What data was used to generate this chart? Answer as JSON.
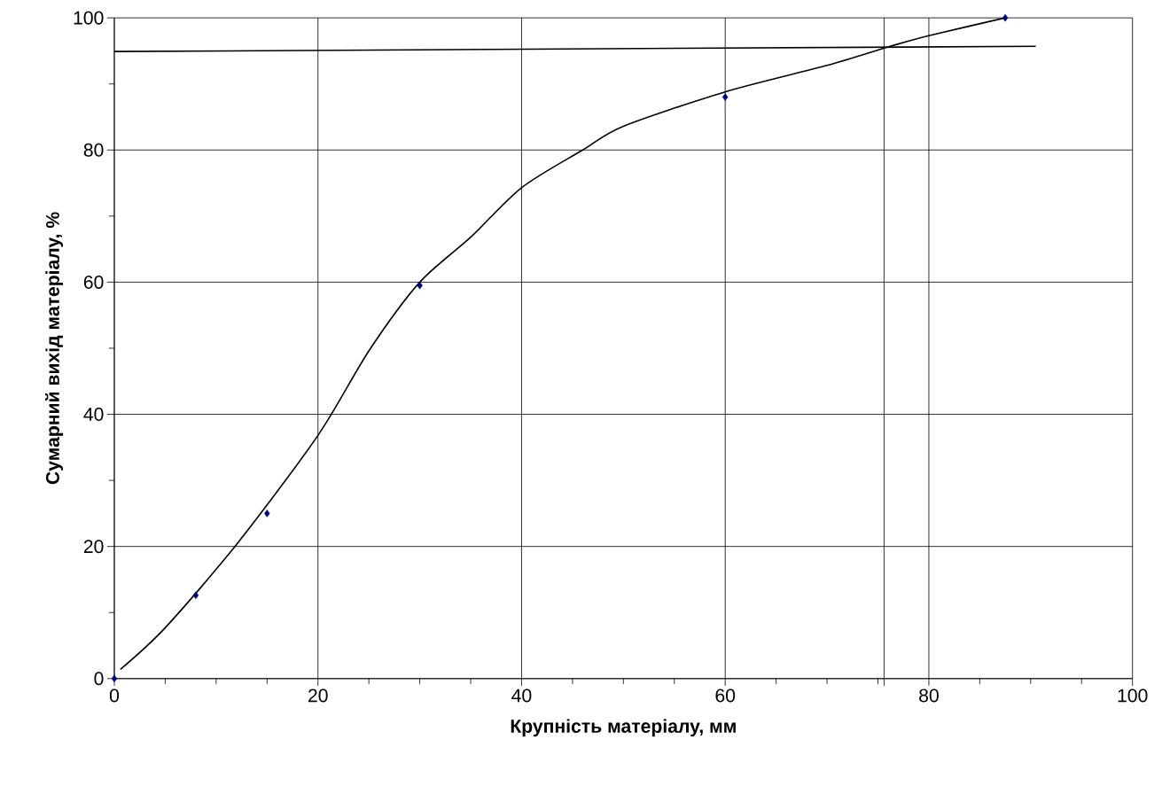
{
  "chart_data": {
    "type": "scatter",
    "xlabel": "Крупність матеріалу, мм",
    "ylabel": "Сумарний вихід матеріалу, %",
    "xlim": [
      0,
      100
    ],
    "ylim": [
      0,
      100
    ],
    "xticks": [
      0,
      20,
      40,
      60,
      80,
      100
    ],
    "yticks": [
      0,
      20,
      40,
      60,
      80,
      100
    ],
    "grid": true,
    "series": [
      {
        "marker": "diamond",
        "color": "#000080",
        "x": [
          0,
          8,
          15,
          30,
          60,
          87.5
        ],
        "values": [
          0,
          12.6,
          25,
          59.5,
          88,
          100
        ]
      },
      {
        "type": "line",
        "marker": "none",
        "line_style": "solid",
        "color": "#000000",
        "x": [
          0.6,
          5,
          12,
          20,
          25,
          30,
          35,
          40,
          46,
          50,
          60,
          70,
          76,
          80,
          87.5
        ],
        "values": [
          1.4,
          7.7,
          20.3,
          36.8,
          49.6,
          60,
          66.8,
          74.3,
          80,
          83.6,
          88.8,
          92.8,
          95.6,
          97.3,
          100
        ]
      },
      {
        "type": "line",
        "marker": "none",
        "line_style": "solid",
        "color": "#000000",
        "x": [
          0,
          90.5
        ],
        "values": [
          94.9,
          95.7
        ]
      }
    ],
    "ref_lines": [
      {
        "axis": "x",
        "value": 75.6,
        "color": "#000000"
      }
    ]
  }
}
